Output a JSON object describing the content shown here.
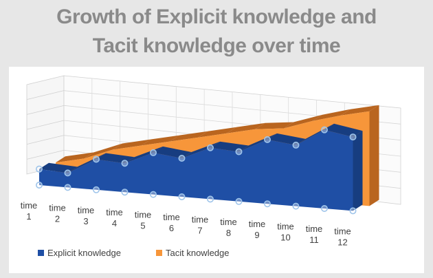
{
  "chart_data": {
    "type": "area",
    "title_lines": [
      "Growth of Explicit knowledge and",
      "Tacit knowledge over time"
    ],
    "categories": [
      [
        "time",
        "1"
      ],
      [
        "time",
        "2"
      ],
      [
        "time",
        "3"
      ],
      [
        "time",
        "4"
      ],
      [
        "time",
        "5"
      ],
      [
        "time",
        "6"
      ],
      [
        "time",
        "7"
      ],
      [
        "time",
        "8"
      ],
      [
        "time",
        "9"
      ],
      [
        "time",
        "10"
      ],
      [
        "time",
        "11"
      ],
      [
        "time",
        "12"
      ]
    ],
    "series": [
      {
        "name": "Explicit knowledge",
        "color": "#1f4fa5",
        "side_color": "#173d80",
        "values": [
          1.0,
          0.9,
          1.9,
          1.8,
          2.6,
          2.4,
          3.2,
          3.1,
          4.0,
          3.8,
          4.9,
          4.6
        ]
      },
      {
        "name": "Tacit knowledge",
        "color": "#f7963a",
        "side_color": "#b9651f",
        "values": [
          1.1,
          1.5,
          2.2,
          2.6,
          3.0,
          3.4,
          3.8,
          4.2,
          4.4,
          5.0,
          5.5,
          5.9
        ]
      }
    ],
    "ylim": [
      0,
      6
    ],
    "grid": true,
    "legend_position": "bottom-left"
  }
}
